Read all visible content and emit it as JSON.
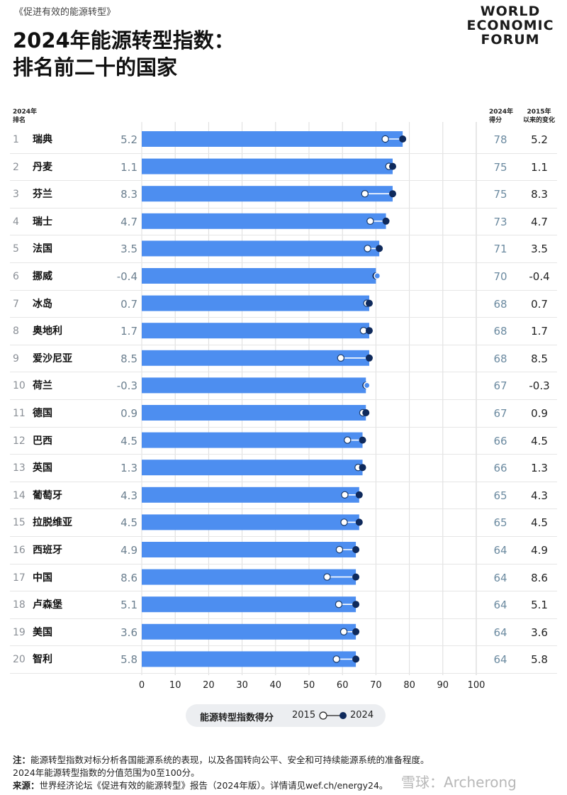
{
  "report": "《促进有效的能源转型》",
  "title_line1": "2024年能源转型指数：",
  "title_line2": "排名前二十的国家",
  "logo": [
    "WORLD",
    "ECONOMIC",
    "FORUM"
  ],
  "header": {
    "rank": [
      "2024年",
      "排名"
    ],
    "score": [
      "2024年",
      "得分"
    ],
    "change": [
      "2015年",
      "以来的变化"
    ]
  },
  "legend": {
    "label": "能源转型指数得分",
    "y2015": "2015",
    "y2024": "2024"
  },
  "notes": {
    "note_label": "注：",
    "note_text": "能源转型指数对标分析各国能源系统的表现，以及各国转向公平、安全和可持续能源系统的准备程度。",
    "note_text2": "2024年能源转型指数的分值范围为0至100分。",
    "source_label": "来源：",
    "source_text": "世界经济论坛《促进有效的能源转型》报告（2024年版）。详情请见wef.ch/energy24。"
  },
  "watermark": "雪球：Archerong",
  "colors": {
    "bar": "#4d8ef0",
    "dot2024": "#0f2a5c",
    "dot2015": "#ffffff",
    "axis": "#222222"
  },
  "chart_data": {
    "type": "bar",
    "orientation": "horizontal",
    "xlim": [
      0,
      100
    ],
    "xticks": [
      "0",
      "10",
      "20",
      "30",
      "40",
      "50",
      "60",
      "70",
      "80",
      "90",
      "100"
    ],
    "rows": [
      {
        "rank": "1",
        "country": "瑞典",
        "change": "5.2",
        "score": "78",
        "v2024": 78,
        "v2015": 72.8
      },
      {
        "rank": "2",
        "country": "丹麦",
        "change": "1.1",
        "score": "75",
        "v2024": 75,
        "v2015": 73.9
      },
      {
        "rank": "3",
        "country": "芬兰",
        "change": "8.3",
        "score": "75",
        "v2024": 75,
        "v2015": 66.7
      },
      {
        "rank": "4",
        "country": "瑞士",
        "change": "4.7",
        "score": "73",
        "v2024": 73,
        "v2015": 68.3
      },
      {
        "rank": "5",
        "country": "法国",
        "change": "3.5",
        "score": "71",
        "v2024": 71,
        "v2015": 67.5
      },
      {
        "rank": "6",
        "country": "挪威",
        "change": "-0.4",
        "score": "70",
        "v2024": 70,
        "v2015": 70.4
      },
      {
        "rank": "7",
        "country": "冰岛",
        "change": "0.7",
        "score": "68",
        "v2024": 68,
        "v2015": 67.3
      },
      {
        "rank": "8",
        "country": "奥地利",
        "change": "1.7",
        "score": "68",
        "v2024": 68,
        "v2015": 66.3
      },
      {
        "rank": "9",
        "country": "爱沙尼亚",
        "change": "8.5",
        "score": "68",
        "v2024": 68,
        "v2015": 59.5
      },
      {
        "rank": "10",
        "country": "荷兰",
        "change": "-0.3",
        "score": "67",
        "v2024": 67,
        "v2015": 67.3
      },
      {
        "rank": "11",
        "country": "德国",
        "change": "0.9",
        "score": "67",
        "v2024": 67,
        "v2015": 66.1
      },
      {
        "rank": "12",
        "country": "巴西",
        "change": "4.5",
        "score": "66",
        "v2024": 66,
        "v2015": 61.5
      },
      {
        "rank": "13",
        "country": "英国",
        "change": "1.3",
        "score": "66",
        "v2024": 66,
        "v2015": 64.7
      },
      {
        "rank": "14",
        "country": "葡萄牙",
        "change": "4.3",
        "score": "65",
        "v2024": 65,
        "v2015": 60.7
      },
      {
        "rank": "15",
        "country": "拉脱维亚",
        "change": "4.5",
        "score": "65",
        "v2024": 65,
        "v2015": 60.5
      },
      {
        "rank": "16",
        "country": "西班牙",
        "change": "4.9",
        "score": "64",
        "v2024": 64,
        "v2015": 59.1
      },
      {
        "rank": "17",
        "country": "中国",
        "change": "8.6",
        "score": "64",
        "v2024": 64,
        "v2015": 55.4
      },
      {
        "rank": "18",
        "country": "卢森堡",
        "change": "5.1",
        "score": "64",
        "v2024": 64,
        "v2015": 58.9
      },
      {
        "rank": "19",
        "country": "美国",
        "change": "3.6",
        "score": "64",
        "v2024": 64,
        "v2015": 60.4
      },
      {
        "rank": "20",
        "country": "智利",
        "change": "5.8",
        "score": "64",
        "v2024": 64,
        "v2015": 58.2
      }
    ]
  }
}
